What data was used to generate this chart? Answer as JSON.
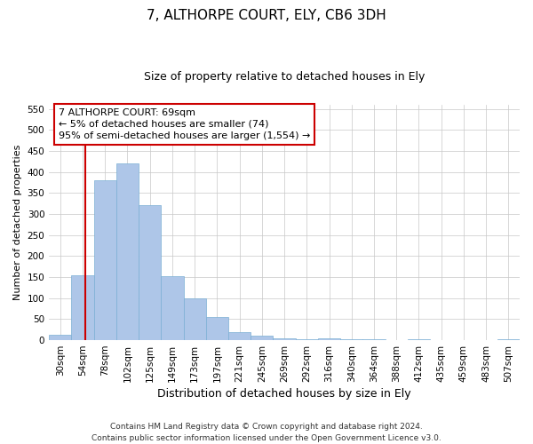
{
  "title": "7, ALTHORPE COURT, ELY, CB6 3DH",
  "subtitle": "Size of property relative to detached houses in Ely",
  "xlabel": "Distribution of detached houses by size in Ely",
  "ylabel": "Number of detached properties",
  "categories": [
    "30sqm",
    "54sqm",
    "78sqm",
    "102sqm",
    "125sqm",
    "149sqm",
    "173sqm",
    "197sqm",
    "221sqm",
    "245sqm",
    "269sqm",
    "292sqm",
    "316sqm",
    "340sqm",
    "364sqm",
    "388sqm",
    "412sqm",
    "435sqm",
    "459sqm",
    "483sqm",
    "507sqm"
  ],
  "values": [
    12,
    155,
    380,
    420,
    320,
    152,
    100,
    55,
    20,
    10,
    5,
    3,
    5,
    2,
    3,
    1,
    2,
    1,
    1,
    1,
    3
  ],
  "bar_color": "#aec6e8",
  "bar_edge_color": "#7bafd4",
  "background_color": "#ffffff",
  "grid_color": "#c8c8c8",
  "annotation_text": "7 ALTHORPE COURT: 69sqm\n← 5% of detached houses are smaller (74)\n95% of semi-detached houses are larger (1,554) →",
  "annotation_box_color": "#ffffff",
  "annotation_box_edge_color": "#cc0000",
  "ylim": [
    0,
    560
  ],
  "yticks": [
    0,
    50,
    100,
    150,
    200,
    250,
    300,
    350,
    400,
    450,
    500,
    550
  ],
  "footnote": "Contains HM Land Registry data © Crown copyright and database right 2024.\nContains public sector information licensed under the Open Government Licence v3.0.",
  "title_fontsize": 11,
  "subtitle_fontsize": 9,
  "xlabel_fontsize": 9,
  "ylabel_fontsize": 8,
  "tick_fontsize": 7.5,
  "annotation_fontsize": 8,
  "footnote_fontsize": 6.5
}
